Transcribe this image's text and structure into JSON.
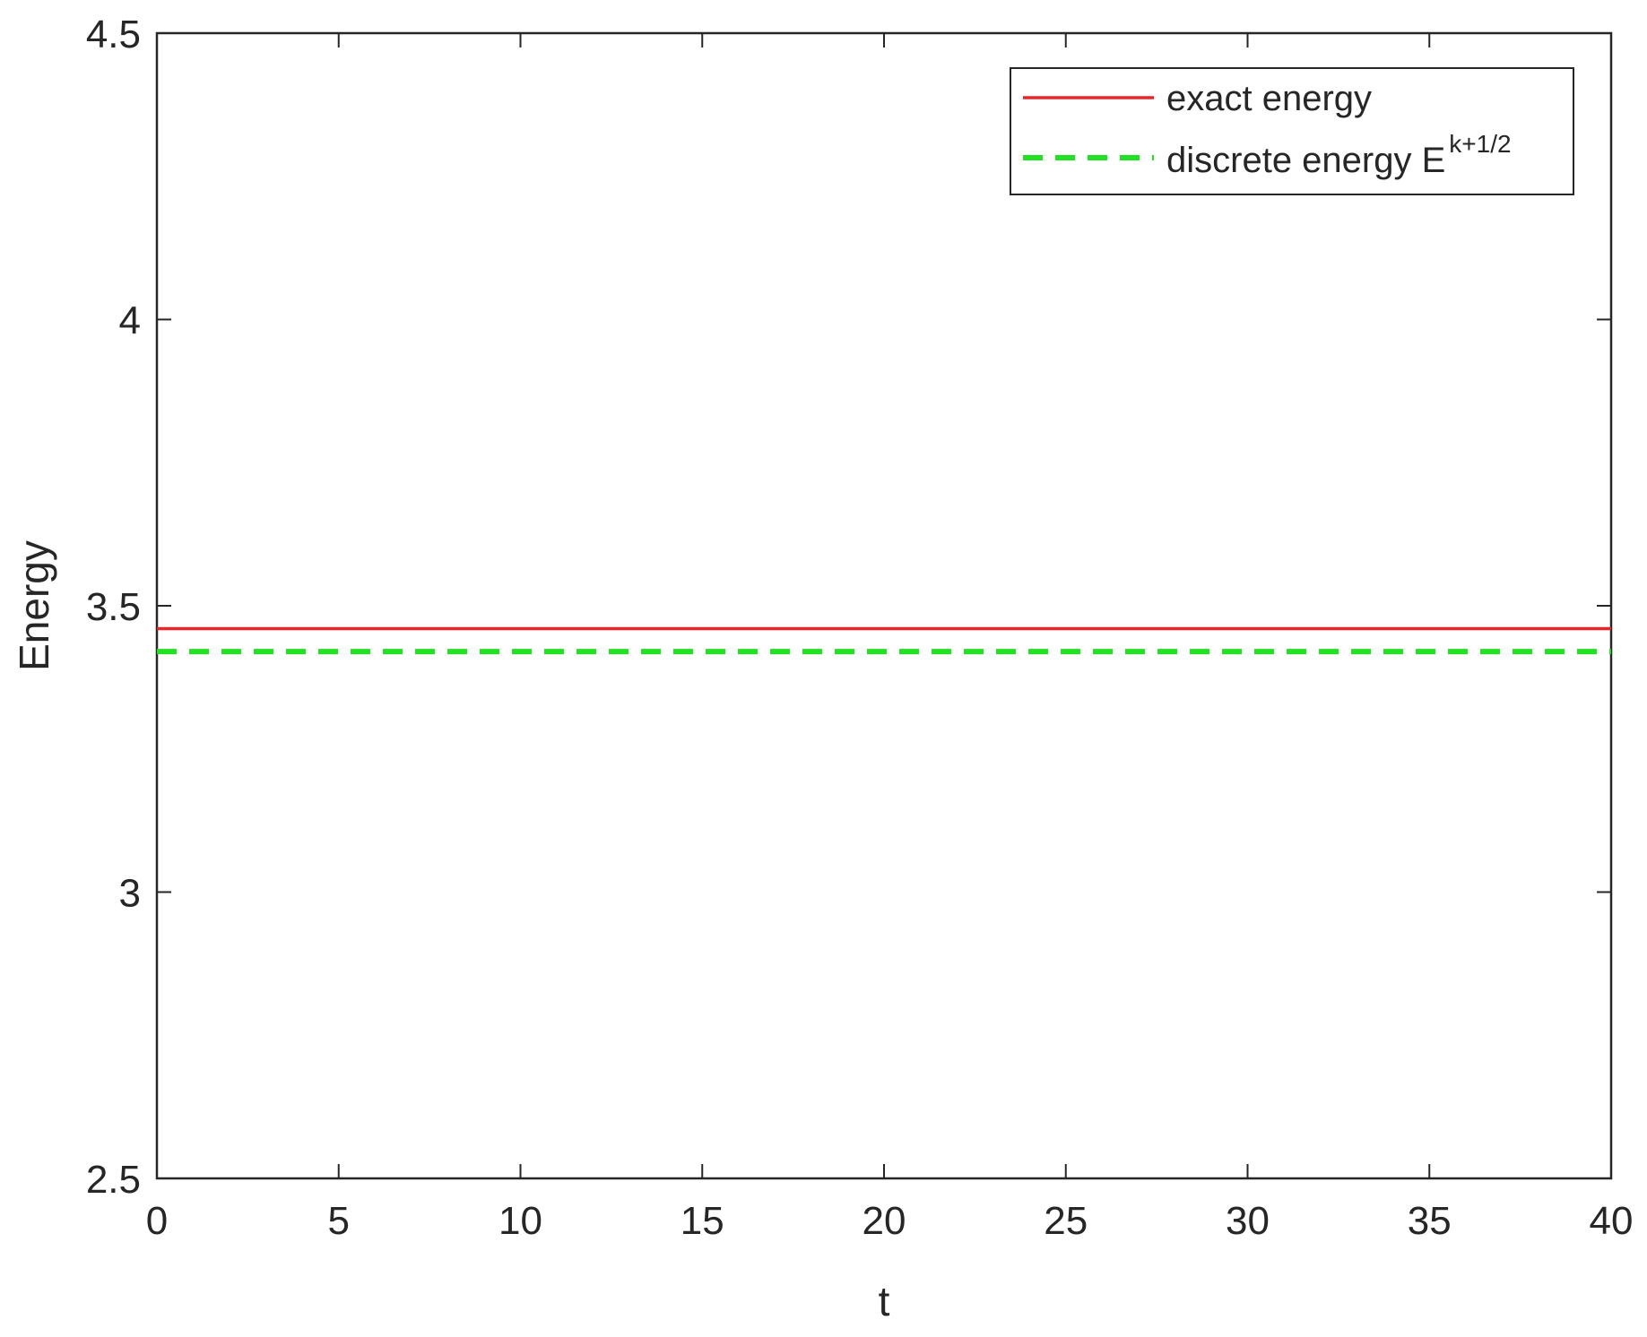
{
  "chart_data": {
    "type": "line",
    "title": "",
    "xlabel": "t",
    "ylabel": "Energy",
    "xlim": [
      0,
      40
    ],
    "ylim": [
      2.5,
      4.5
    ],
    "xticks": [
      0,
      5,
      10,
      15,
      20,
      25,
      30,
      35,
      40
    ],
    "yticks": [
      2.5,
      3,
      3.5,
      4,
      4.5
    ],
    "xtick_labels": [
      "0",
      "5",
      "10",
      "15",
      "20",
      "25",
      "30",
      "35",
      "40"
    ],
    "ytick_labels": [
      "2.5",
      "3",
      "3.5",
      "4",
      "4.5"
    ],
    "grid": false,
    "legend_position": "top-right",
    "series": [
      {
        "name": "exact energy",
        "color": "#e8262a",
        "style": "solid",
        "x": [
          0,
          40
        ],
        "y": [
          3.46,
          3.46
        ]
      },
      {
        "name": "discrete energy E",
        "name_superscript": "k+1/2",
        "color": "#22e022",
        "style": "dashed",
        "x": [
          0,
          40
        ],
        "y": [
          3.42,
          3.42
        ]
      }
    ]
  }
}
